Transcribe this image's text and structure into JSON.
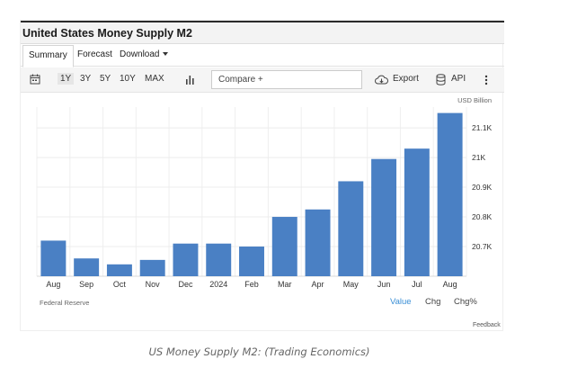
{
  "title": "United States Money Supply M2",
  "tabs": [
    {
      "label": "Summary",
      "active": true
    },
    {
      "label": "Forecast"
    },
    {
      "label": "Download"
    }
  ],
  "toolbar": {
    "ranges": [
      "1Y",
      "3Y",
      "5Y",
      "10Y",
      "MAX"
    ],
    "selected_range": "1Y",
    "compare_label": "Compare +",
    "export_label": "Export",
    "api_label": "API",
    "icons": [
      "calendar-icon",
      "bar-chart-icon",
      "cloud-download-icon",
      "database-icon",
      "more-vertical-icon"
    ]
  },
  "chart_data": {
    "type": "bar",
    "unit_label": "USD Billion",
    "categories": [
      "Aug",
      "Sep",
      "Oct",
      "Nov",
      "Dec",
      "2024",
      "Feb",
      "Mar",
      "Apr",
      "May",
      "Jun",
      "Jul",
      "Aug"
    ],
    "values": [
      20720,
      20660,
      20640,
      20655,
      20710,
      20710,
      20700,
      20800,
      20825,
      20920,
      20995,
      21030,
      21150
    ],
    "yticks": [
      20700,
      20800,
      20900,
      21000,
      21100
    ],
    "ytick_labels": [
      "20.7K",
      "20.8K",
      "20.9K",
      "21K",
      "21.1K"
    ],
    "ylim": [
      20600,
      21170
    ],
    "bar_color": "#4a80c4",
    "grid": true,
    "yaxis_position": "right",
    "source": "Federal Reserve"
  },
  "view_modes": [
    {
      "label": "Value",
      "active": true
    },
    {
      "label": "Chg"
    },
    {
      "label": "Chg%"
    }
  ],
  "feedback_label": "Feedback",
  "caption": "US Money Supply M2: (Trading Economics)"
}
